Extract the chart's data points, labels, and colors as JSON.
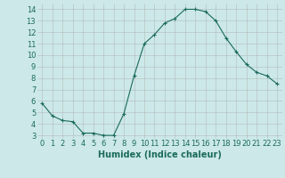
{
  "x": [
    0,
    1,
    2,
    3,
    4,
    5,
    6,
    7,
    8,
    9,
    10,
    11,
    12,
    13,
    14,
    15,
    16,
    17,
    18,
    19,
    20,
    21,
    22,
    23
  ],
  "y": [
    5.8,
    4.7,
    4.3,
    4.2,
    3.2,
    3.2,
    3.0,
    3.0,
    4.9,
    8.2,
    11.0,
    11.8,
    12.8,
    13.2,
    14.0,
    14.0,
    13.8,
    13.0,
    11.5,
    10.3,
    9.2,
    8.5,
    8.2,
    7.5
  ],
  "line_color": "#1a6b5a",
  "marker": "+",
  "xlabel": "Humidex (Indice chaleur)",
  "xlim": [
    -0.5,
    23.5
  ],
  "ylim": [
    2.7,
    14.5
  ],
  "yticks": [
    3,
    4,
    5,
    6,
    7,
    8,
    9,
    10,
    11,
    12,
    13,
    14
  ],
  "xticks": [
    0,
    1,
    2,
    3,
    4,
    5,
    6,
    7,
    8,
    9,
    10,
    11,
    12,
    13,
    14,
    15,
    16,
    17,
    18,
    19,
    20,
    21,
    22,
    23
  ],
  "bg_color": "#cce8e8",
  "grid_color": "#aaaaaa",
  "tick_color": "#1a6b5a",
  "label_color": "#1a6b5a",
  "font_size": 6
}
